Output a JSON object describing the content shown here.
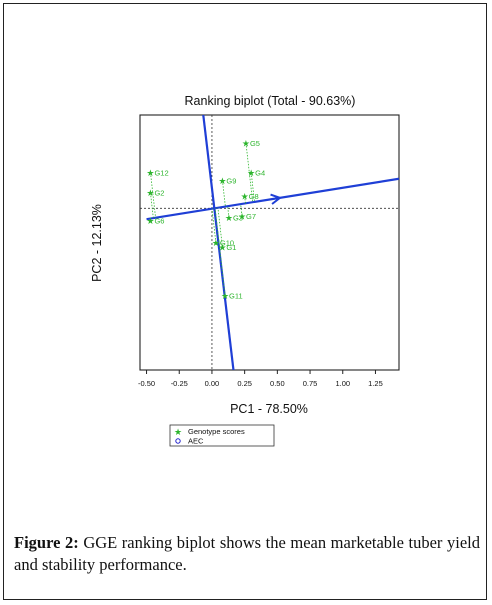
{
  "chart_data": {
    "type": "scatter",
    "title": "Ranking biplot (Total - 90.63%)",
    "xlabel": "PC1 - 78.50%",
    "ylabel": "PC2 - 12.13%",
    "xlim": [
      -0.55,
      1.43
    ],
    "ylim": [
      -1.04,
      0.6
    ],
    "x_ticks": [
      -0.5,
      -0.25,
      0.0,
      0.25,
      0.5,
      0.75,
      1.0,
      1.25
    ],
    "x_tick_labels": [
      "-0.50",
      "-0.25",
      "0.00",
      "0.25",
      "0.50",
      "0.75",
      "1.00",
      "1.25"
    ],
    "series": [
      {
        "name": "Genotype scores",
        "marker": "star",
        "color": "#2db52d",
        "points": [
          {
            "label": "G5",
            "x": 0.26,
            "y": 0.42
          },
          {
            "label": "G4",
            "x": 0.3,
            "y": 0.23
          },
          {
            "label": "G12",
            "x": -0.47,
            "y": 0.23
          },
          {
            "label": "G9",
            "x": 0.08,
            "y": 0.18
          },
          {
            "label": "G2",
            "x": -0.47,
            "y": 0.1
          },
          {
            "label": "G8",
            "x": 0.25,
            "y": 0.08
          },
          {
            "label": "G7",
            "x": 0.23,
            "y": -0.05
          },
          {
            "label": "G3",
            "x": 0.13,
            "y": -0.06
          },
          {
            "label": "G6",
            "x": -0.47,
            "y": -0.08
          },
          {
            "label": "G10",
            "x": 0.03,
            "y": -0.22
          },
          {
            "label": "G1",
            "x": 0.08,
            "y": -0.25
          },
          {
            "label": "G11",
            "x": 0.1,
            "y": -0.56
          }
        ]
      },
      {
        "name": "AEC",
        "marker": "circle",
        "color": "#2222cc",
        "points": []
      }
    ],
    "aec_abscissa": {
      "from": [
        -0.5,
        -0.07
      ],
      "to": [
        1.43,
        0.19
      ],
      "color": "#1f3fd6"
    },
    "aec_ordinate": {
      "from": [
        -0.1,
        0.84
      ],
      "to": [
        0.18,
        -1.15
      ],
      "color": "#1f3fd6"
    },
    "average_environment_arrow": {
      "x": 0.52,
      "y": 0.067
    },
    "dotted_reference_axes": true,
    "grid": false,
    "legend_position": "bottom-left below plot"
  },
  "caption": {
    "label": "Figure 2:",
    "text": " GGE ranking biplot shows the mean marketable tuber yield and stability performance."
  }
}
